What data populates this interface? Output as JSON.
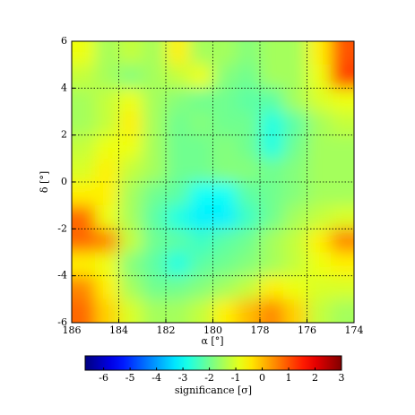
{
  "chart_data": {
    "type": "heatmap",
    "xlabel": "α [°]",
    "ylabel": "δ [°]",
    "colorbar_label": "significance [σ]",
    "colormap": "jet",
    "grid": true,
    "xbins": [
      186,
      185,
      184,
      183,
      182,
      181,
      180,
      179,
      178,
      177,
      176,
      175,
      174
    ],
    "ybins": [
      6,
      5,
      4,
      3,
      2,
      1,
      0,
      -1,
      -2,
      -3,
      -4,
      -5,
      -6
    ],
    "xlim": [
      186,
      174
    ],
    "ylim": [
      -6,
      6
    ],
    "xticks": [
      186,
      184,
      182,
      180,
      178,
      176,
      174
    ],
    "yticks": [
      -6,
      -4,
      -2,
      0,
      2,
      4,
      6
    ],
    "clim": [
      -6.7,
      3
    ],
    "cticks": [
      -6,
      -5,
      -4,
      -3,
      -2,
      -1,
      0,
      1,
      2,
      3
    ],
    "values": [
      [
        -0.8,
        -1.5,
        -1.2,
        -1.5,
        -0.5,
        -1.5,
        -1.5,
        -1.8,
        -1.5,
        -1.5,
        -0.5,
        1.0
      ],
      [
        -1.2,
        -1.5,
        -1.8,
        -1.5,
        -1.2,
        -0.8,
        -1.8,
        -2,
        -1.5,
        -1.5,
        -0.8,
        1.2
      ],
      [
        -1.5,
        -1.2,
        -0.8,
        -1.5,
        -1.8,
        -2,
        -2,
        -2.2,
        -2.2,
        -1.5,
        -1,
        -0.8
      ],
      [
        -1.5,
        -1.2,
        -0.5,
        -1.5,
        -2,
        -1.8,
        -2,
        -2,
        -2.8,
        -2.2,
        -1.5,
        -1.2
      ],
      [
        -1.2,
        -0.8,
        -0.8,
        -1.5,
        -2,
        -2,
        -1.8,
        -2,
        -2.8,
        -2,
        -1.5,
        -1.5
      ],
      [
        -1,
        -0.5,
        -1.2,
        -1.5,
        -2,
        -2,
        -1.8,
        -1.8,
        -2,
        -1.8,
        -1.5,
        -1.5
      ],
      [
        -0.5,
        -0.5,
        -1.5,
        -2,
        -2.2,
        -3,
        -3,
        -2.2,
        -2,
        -1.8,
        -1.5,
        -1.5
      ],
      [
        0.8,
        -0.8,
        -1.5,
        -2.2,
        -2.8,
        -3.2,
        -3.2,
        -2.5,
        -2,
        -1.5,
        -1.2,
        -1
      ],
      [
        0.8,
        0.5,
        -1.2,
        -2,
        -2.2,
        -2.5,
        -2.2,
        -2,
        -1.5,
        -1.2,
        -0.5,
        0.5
      ],
      [
        -0.5,
        -0.8,
        -1.8,
        -2.2,
        -2.8,
        -2.2,
        -2,
        -1.8,
        -1.5,
        -1.2,
        -0.8,
        -0.5
      ],
      [
        0.5,
        -0.5,
        -1.5,
        -2,
        -2,
        -1.8,
        -1.5,
        -1.2,
        -0.5,
        -0.8,
        -1,
        -1
      ],
      [
        0.8,
        -0.2,
        -1,
        -1.5,
        -1.5,
        -1.2,
        -0.5,
        0,
        0.5,
        -0.2,
        -1.2,
        -1.5
      ]
    ]
  }
}
